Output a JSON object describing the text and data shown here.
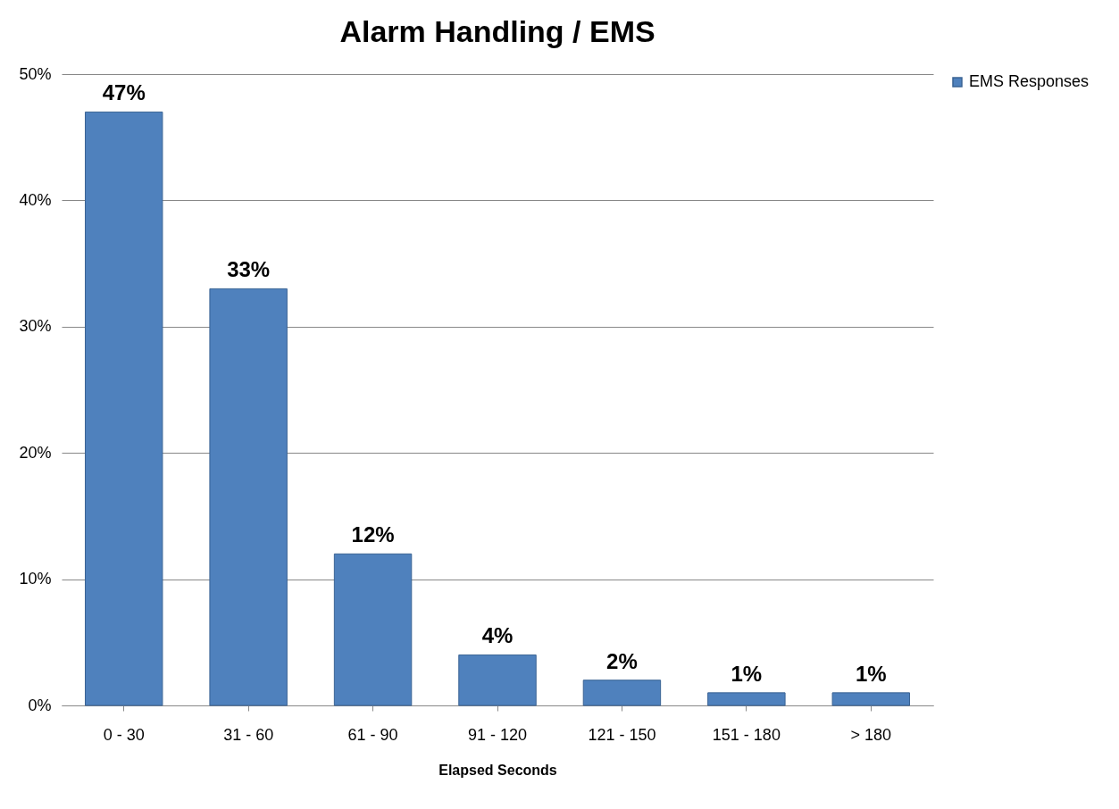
{
  "chart_data": {
    "type": "bar",
    "title": "Alarm Handling / EMS",
    "xlabel": "Elapsed Seconds",
    "categories": [
      "0 - 30",
      "31 - 60",
      "61 - 90",
      "91 - 120",
      "121 - 150",
      "151 - 180",
      "> 180"
    ],
    "series": [
      {
        "name": "EMS Responses",
        "color": "#4f81bd",
        "values": [
          47,
          33,
          12,
          4,
          2,
          1,
          1
        ],
        "value_labels": [
          "47%",
          "33%",
          "12%",
          "4%",
          "2%",
          "1%",
          "1%"
        ]
      }
    ],
    "ylim": [
      0,
      50
    ],
    "yticks": [
      {
        "value": 0,
        "label": "0%"
      },
      {
        "value": 10,
        "label": "10%"
      },
      {
        "value": 20,
        "label": "20%"
      },
      {
        "value": 30,
        "label": "30%"
      },
      {
        "value": 40,
        "label": "40%"
      },
      {
        "value": 50,
        "label": "50%"
      }
    ],
    "grid": "y",
    "legend": "right"
  }
}
